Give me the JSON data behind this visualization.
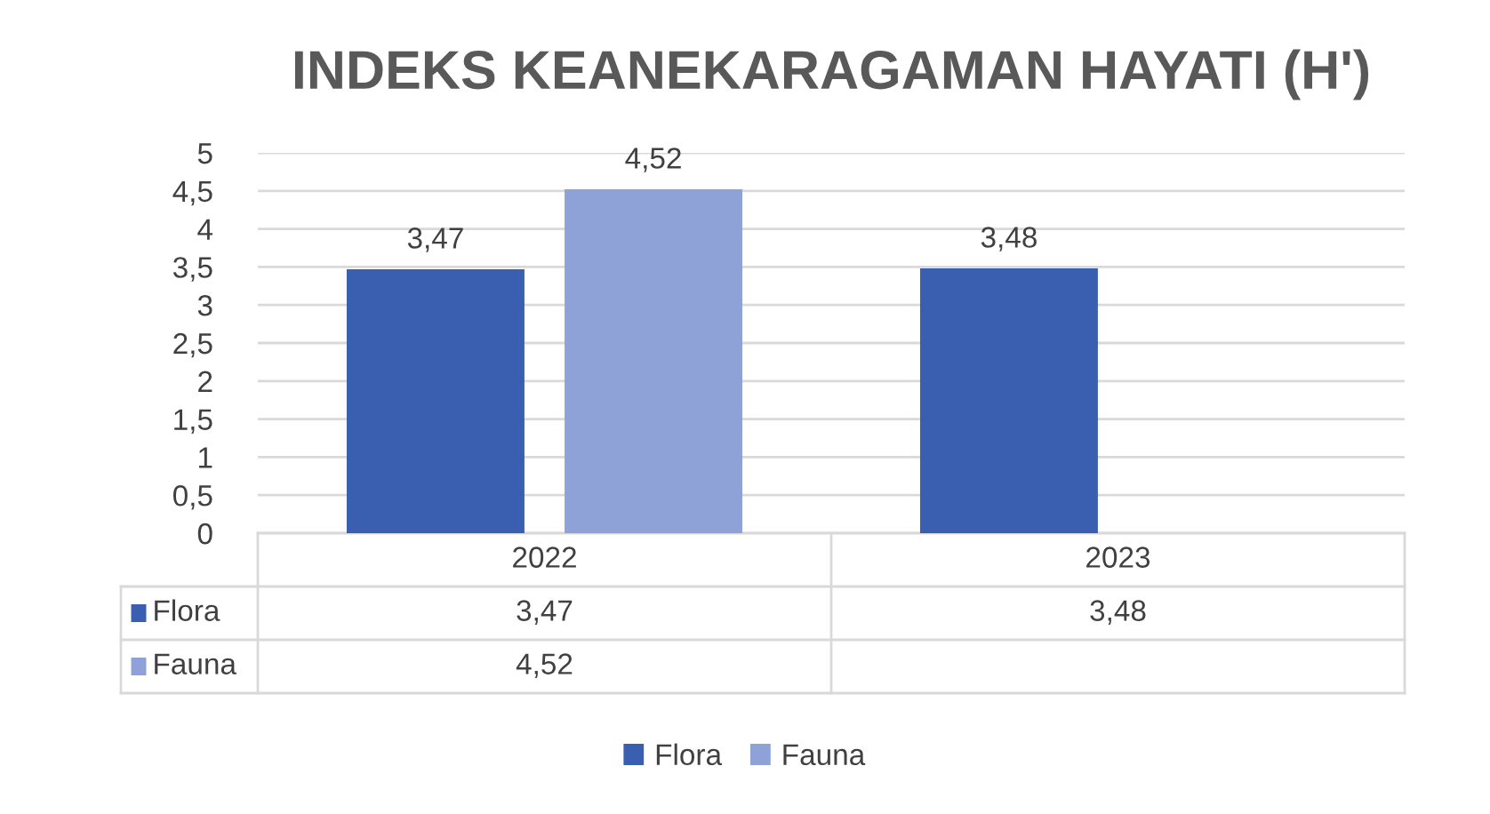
{
  "chart_data": {
    "type": "bar",
    "title": "INDEKS KEANEKARAGAMAN HAYATI (H')",
    "categories": [
      "2022",
      "2023"
    ],
    "series": [
      {
        "name": "Flora",
        "color": "#3b5fb0",
        "values": [
          3.47,
          3.48
        ],
        "value_labels": [
          "3,47",
          "3,48"
        ]
      },
      {
        "name": "Fauna",
        "color": "#8fa2d8",
        "values": [
          4.52,
          null
        ],
        "value_labels": [
          "4,52",
          null
        ]
      }
    ],
    "ylim": [
      0,
      5
    ],
    "yticks": [
      0,
      {
        "value": 0.5,
        "label": "0,5"
      },
      1,
      {
        "value": 1.5,
        "label": "1,5"
      },
      2,
      {
        "value": 2.5,
        "label": "2,5"
      },
      3,
      {
        "value": 3.5,
        "label": "3,5"
      },
      4,
      {
        "value": 4.5,
        "label": "4,5"
      },
      5
    ],
    "grid": "y",
    "legend": "bottom"
  }
}
